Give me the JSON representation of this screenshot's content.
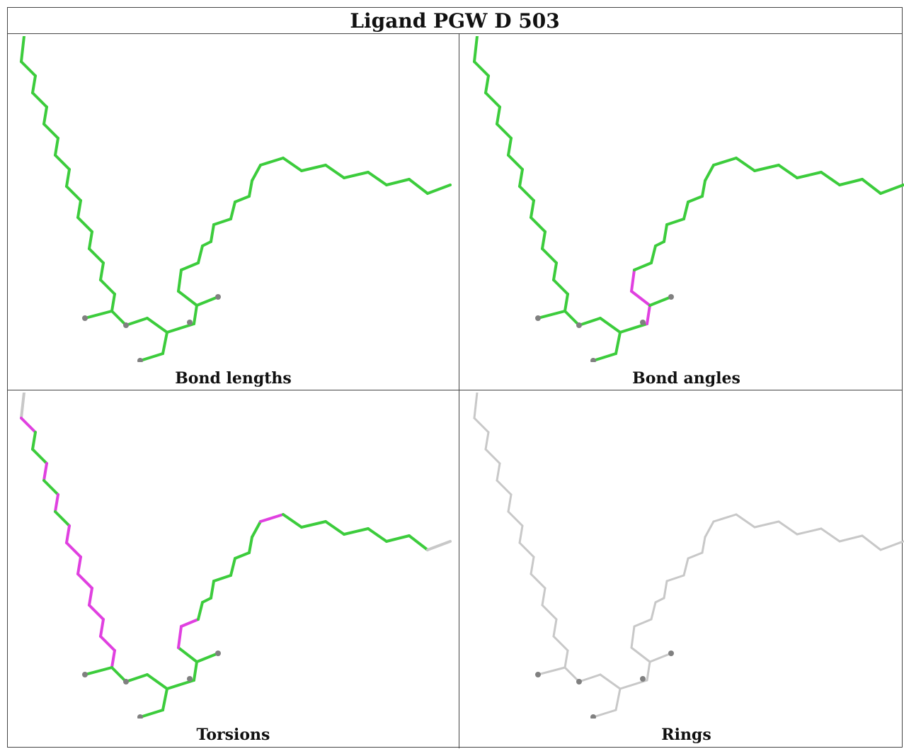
{
  "title": "Ligand PGW D 503",
  "panels": [
    {
      "caption": "Bond lengths",
      "mode": "lengths"
    },
    {
      "caption": "Bond angles",
      "mode": "angles"
    },
    {
      "caption": "Torsions",
      "mode": "torsions"
    },
    {
      "caption": "Rings",
      "mode": "rings"
    }
  ],
  "colors": {
    "ok": "#3ccc3c",
    "outlier": "#e040e0",
    "neutral": "#c8c8c8",
    "atom": "#808080",
    "border": "#444444"
  }
}
